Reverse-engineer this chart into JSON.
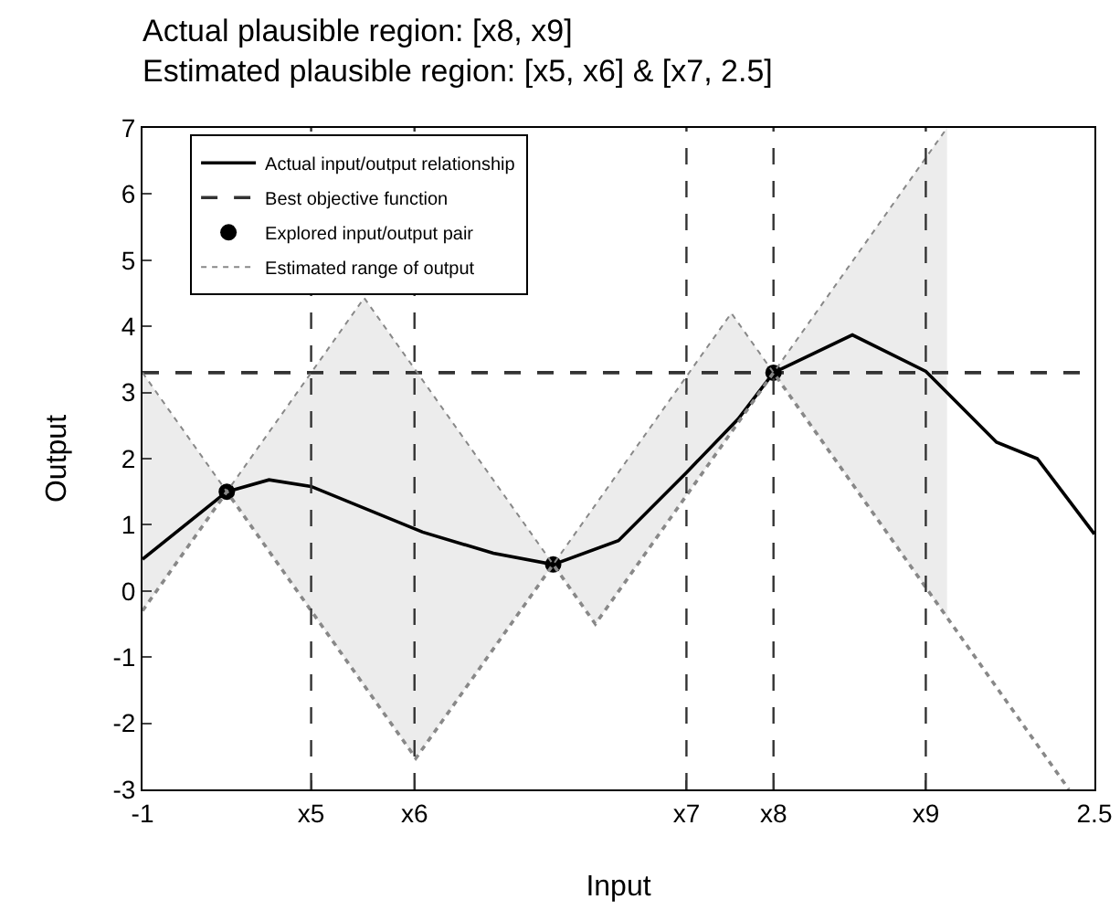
{
  "chart_data": {
    "type": "line",
    "title": "Actual plausible region: [x8, x9]",
    "subtitle": "Estimated plausible region: [x5, x6] & [x7, 2.5]",
    "xlabel": "Input",
    "ylabel": "Output",
    "xlim": [
      -1,
      2.5
    ],
    "ylim": [
      -3,
      7
    ],
    "xticks": [
      -1,
      {
        "value": -0.38,
        "label": "x5"
      },
      {
        "value": 0.0,
        "label": "x6"
      },
      {
        "value": 1.0,
        "label": "x7"
      },
      {
        "value": 1.32,
        "label": "x8"
      },
      {
        "value": 1.88,
        "label": "x9"
      },
      2.5
    ],
    "yticks": [
      -3,
      -2,
      -1,
      0,
      1,
      2,
      3,
      4,
      5,
      6,
      7
    ],
    "grid": false,
    "legend": "top left",
    "series": [
      {
        "name": "Actual input/output relationship",
        "color": "#000000",
        "line_style": "solid",
        "marker": "none",
        "x": [
          -1,
          -0.69,
          -0.535,
          -0.38,
          0.03,
          0.29,
          0.51,
          0.75,
          1.0,
          1.19,
          1.32,
          1.61,
          1.88,
          2.14,
          2.29,
          2.5
        ],
        "values": [
          0.48,
          1.5,
          1.68,
          1.58,
          0.89,
          0.57,
          0.4,
          0.76,
          1.79,
          2.6,
          3.3,
          3.87,
          3.32,
          2.25,
          2.0,
          0.86
        ]
      },
      {
        "name": "Best objective function",
        "color": "#333333",
        "line_style": "dashed",
        "marker": "none",
        "x": [
          -1,
          2.5
        ],
        "values": [
          3.3,
          3.3
        ]
      },
      {
        "name": "Explored input/output pair",
        "type": "scatter",
        "color": "#000000",
        "marker": "circle",
        "x": [
          -0.69,
          0.51,
          1.32
        ],
        "values": [
          1.5,
          0.4,
          3.3
        ]
      },
      {
        "name": "Estimated range of output",
        "color": "#888888",
        "line_style": "dotted",
        "marker": "none",
        "x": [
          -1,
          -0.69,
          -0.185,
          0.005,
          0.51,
          0.665,
          1.165,
          1.32,
          1.958
        ],
        "values": [
          3.3,
          1.5,
          4.43,
          3.33,
          0.4,
          1.3,
          4.2,
          3.3,
          7
        ],
        "lower": [
          -0.3,
          1.5,
          -1.43,
          -2.53,
          0.4,
          -0.5,
          2.4,
          3.3,
          -0.4
        ],
        "upper": [
          3.3,
          1.5,
          4.43,
          3.33,
          0.4,
          1.3,
          4.2,
          3.3,
          7
        ]
      },
      {
        "color": "#888888",
        "line_style": "dotted",
        "marker": "none",
        "x": [
          -1,
          -0.69,
          -0.185,
          0.005,
          0.51,
          0.665,
          1.165,
          1.32,
          1.958,
          2.406
        ],
        "values": [
          -0.3,
          1.5,
          -1.43,
          -2.53,
          0.4,
          -0.5,
          2.4,
          3.3,
          -0.4,
          -3
        ]
      }
    ],
    "ref_lines": [
      {
        "axis": "x",
        "value": -0.38,
        "color": "#333333",
        "line_style": "dashed"
      },
      {
        "axis": "x",
        "value": 0.0,
        "color": "#333333",
        "line_style": "dashed"
      },
      {
        "axis": "x",
        "value": 1.0,
        "color": "#333333",
        "line_style": "dashed"
      },
      {
        "axis": "x",
        "value": 1.32,
        "color": "#333333",
        "line_style": "dashed"
      },
      {
        "axis": "x",
        "value": 1.88,
        "color": "#333333",
        "line_style": "dashed"
      }
    ]
  }
}
